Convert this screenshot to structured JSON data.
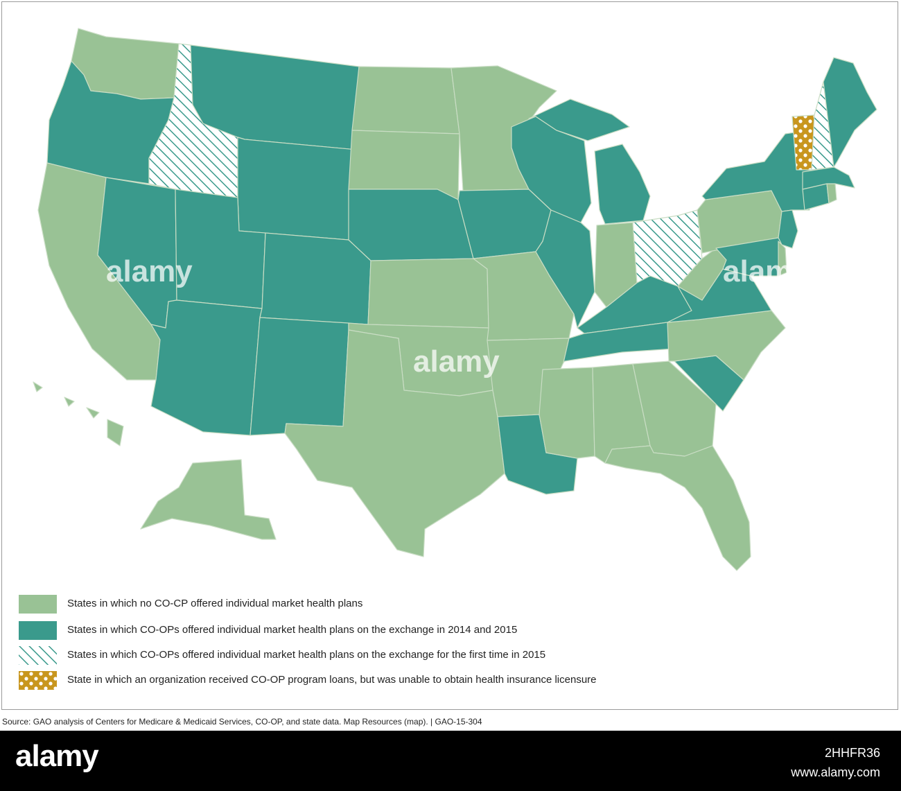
{
  "colors": {
    "no_coop": "#99c295",
    "coop_2014_2015": "#3a9a8c",
    "first_time_2015": "hatched teal on white",
    "no_license": "#c8961e",
    "border": "#c9ddc4"
  },
  "map": {
    "states": [
      {
        "id": "WA",
        "category": "no_coop"
      },
      {
        "id": "OR",
        "category": "coop_2014_2015"
      },
      {
        "id": "CA",
        "category": "no_coop"
      },
      {
        "id": "NV",
        "category": "coop_2014_2015"
      },
      {
        "id": "ID",
        "category": "first_time_2015"
      },
      {
        "id": "MT",
        "category": "coop_2014_2015"
      },
      {
        "id": "WY",
        "category": "coop_2014_2015"
      },
      {
        "id": "UT",
        "category": "coop_2014_2015"
      },
      {
        "id": "AZ",
        "category": "coop_2014_2015"
      },
      {
        "id": "CO",
        "category": "coop_2014_2015"
      },
      {
        "id": "NM",
        "category": "coop_2014_2015"
      },
      {
        "id": "ND",
        "category": "no_coop"
      },
      {
        "id": "SD",
        "category": "no_coop"
      },
      {
        "id": "NE",
        "category": "coop_2014_2015"
      },
      {
        "id": "KS",
        "category": "no_coop"
      },
      {
        "id": "OK",
        "category": "no_coop"
      },
      {
        "id": "TX",
        "category": "no_coop"
      },
      {
        "id": "MN",
        "category": "no_coop"
      },
      {
        "id": "IA",
        "category": "coop_2014_2015"
      },
      {
        "id": "MO",
        "category": "no_coop"
      },
      {
        "id": "AR",
        "category": "no_coop"
      },
      {
        "id": "LA",
        "category": "coop_2014_2015"
      },
      {
        "id": "WI",
        "category": "coop_2014_2015"
      },
      {
        "id": "IL",
        "category": "coop_2014_2015"
      },
      {
        "id": "MI",
        "category": "coop_2014_2015"
      },
      {
        "id": "IN",
        "category": "no_coop"
      },
      {
        "id": "OH",
        "category": "first_time_2015"
      },
      {
        "id": "KY",
        "category": "coop_2014_2015"
      },
      {
        "id": "TN",
        "category": "coop_2014_2015"
      },
      {
        "id": "MS",
        "category": "no_coop"
      },
      {
        "id": "AL",
        "category": "no_coop"
      },
      {
        "id": "GA",
        "category": "no_coop"
      },
      {
        "id": "FL",
        "category": "no_coop"
      },
      {
        "id": "SC",
        "category": "coop_2014_2015"
      },
      {
        "id": "NC",
        "category": "no_coop"
      },
      {
        "id": "VA",
        "category": "coop_2014_2015"
      },
      {
        "id": "WV",
        "category": "no_coop"
      },
      {
        "id": "PA",
        "category": "no_coop"
      },
      {
        "id": "NY",
        "category": "coop_2014_2015"
      },
      {
        "id": "NJ",
        "category": "coop_2014_2015"
      },
      {
        "id": "MD",
        "category": "coop_2014_2015"
      },
      {
        "id": "DE",
        "category": "no_coop"
      },
      {
        "id": "CT",
        "category": "coop_2014_2015"
      },
      {
        "id": "RI",
        "category": "no_coop"
      },
      {
        "id": "MA",
        "category": "coop_2014_2015"
      },
      {
        "id": "VT",
        "category": "no_license"
      },
      {
        "id": "NH",
        "category": "first_time_2015"
      },
      {
        "id": "ME",
        "category": "coop_2014_2015"
      },
      {
        "id": "AK",
        "category": "no_coop"
      },
      {
        "id": "HI",
        "category": "no_coop"
      }
    ]
  },
  "legend": {
    "items": [
      {
        "key": "no_coop",
        "label": "States in which no CO-CP offered individual market health plans"
      },
      {
        "key": "coop_2014_2015",
        "label": "States in which CO-OPs offered individual market health plans on the exchange in 2014 and 2015"
      },
      {
        "key": "first_time_2015",
        "label": "States in which CO-OPs offered individual market health plans on the exchange for the first time in 2015"
      },
      {
        "key": "no_license",
        "label": "State in which an organization received CO-OP program loans, but was unable to obtain health insurance licensure"
      }
    ]
  },
  "source": "Source: GAO analysis of Centers for Medicare & Medicaid Services, CO-OP, and state data. Map Resources (map).  |  GAO-15-304",
  "watermark": {
    "logo": "alamy",
    "image_id": "2HHFR36",
    "site": "www.alamy.com"
  }
}
